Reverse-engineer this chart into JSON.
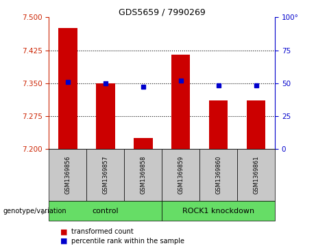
{
  "title": "GDS5659 / 7990269",
  "samples": [
    "GSM1369856",
    "GSM1369857",
    "GSM1369858",
    "GSM1369859",
    "GSM1369860",
    "GSM1369861"
  ],
  "red_values": [
    7.475,
    7.35,
    7.225,
    7.415,
    7.31,
    7.31
  ],
  "blue_values": [
    51,
    50,
    47,
    52,
    48,
    48
  ],
  "ylim_left": [
    7.2,
    7.5
  ],
  "ylim_right": [
    0,
    100
  ],
  "yticks_left": [
    7.2,
    7.275,
    7.35,
    7.425,
    7.5
  ],
  "yticks_right": [
    0,
    25,
    50,
    75,
    100
  ],
  "groups": [
    {
      "label": "control",
      "indices": [
        0,
        1,
        2
      ],
      "color": "#66dd66"
    },
    {
      "label": "ROCK1 knockdown",
      "indices": [
        3,
        4,
        5
      ],
      "color": "#66dd66"
    }
  ],
  "group_label_prefix": "genotype/variation",
  "legend_red": "transformed count",
  "legend_blue": "percentile rank within the sample",
  "bar_color": "#cc0000",
  "dot_color": "#0000cc",
  "grid_color": "#000000",
  "left_axis_color": "#cc2200",
  "right_axis_color": "#0000cc",
  "bg_plot": "#ffffff",
  "bg_sample_labels": "#c8c8c8",
  "bar_width": 0.5,
  "dot_size": 5
}
